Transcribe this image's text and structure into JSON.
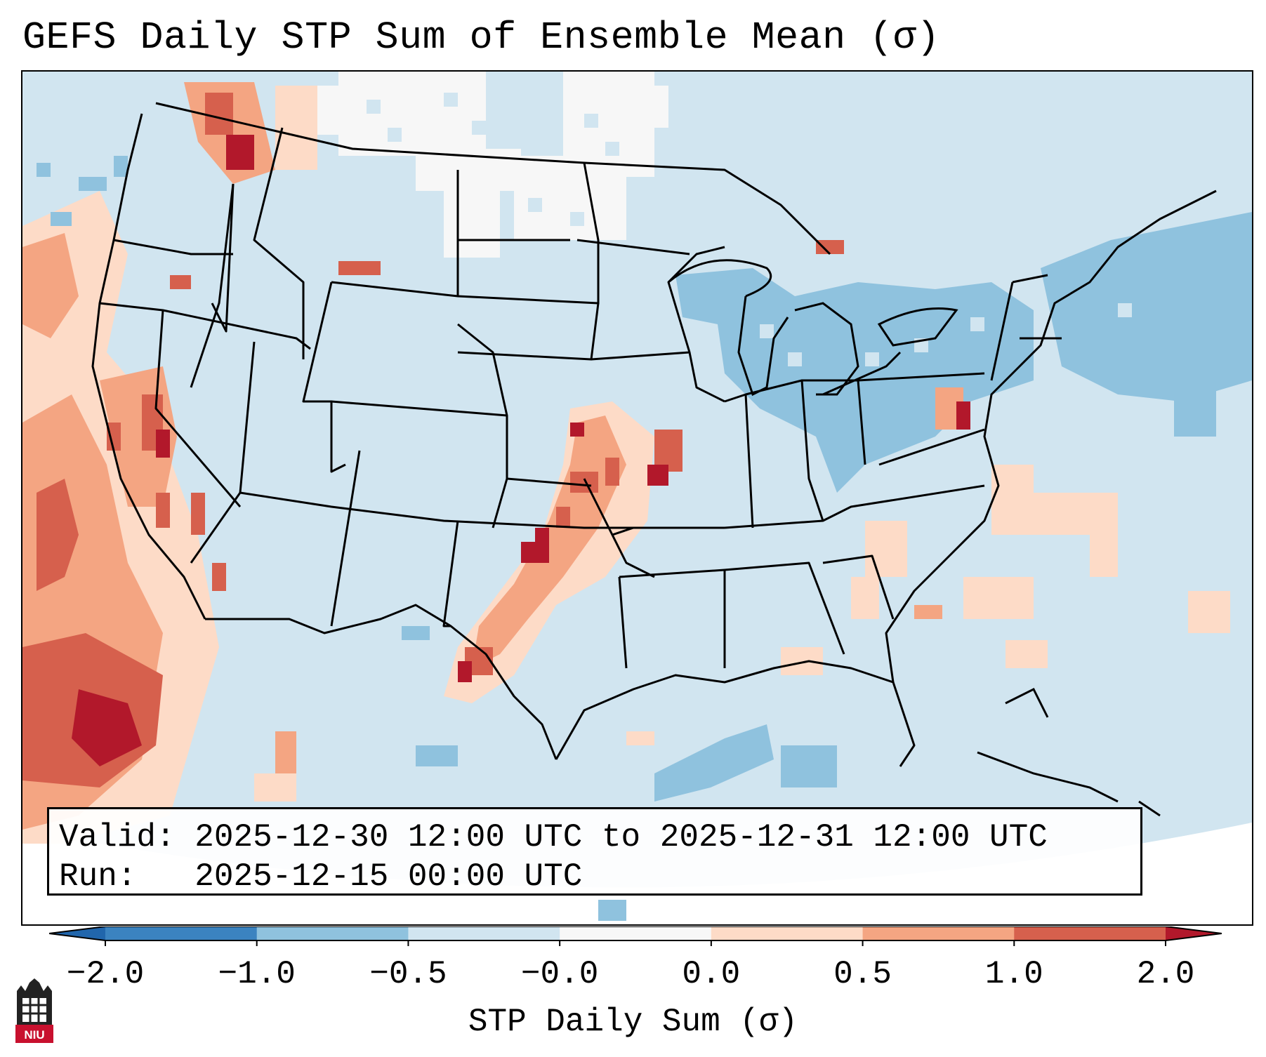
{
  "title": "GEFS Daily STP Sum of Ensemble Mean (σ)",
  "info": {
    "valid_prefix": "Valid:",
    "valid_value": "2025-12-30 12:00 UTC to 2025-12-31 12:00 UTC",
    "run_prefix": "Run:",
    "run_value": "2025-12-15 00:00 UTC"
  },
  "colorbar": {
    "label": "STP Daily Sum (σ)",
    "ticks": [
      "−2.0",
      "−1.0",
      "−0.5",
      "−0.0",
      "0.0",
      "0.5",
      "1.0",
      "2.0"
    ],
    "colors": [
      "#3b83c0",
      "#8fc2de",
      "#d1e5f0",
      "#f7f7f7",
      "#fddbc7",
      "#f4a582",
      "#d6604d"
    ],
    "extend_low": "#2166ac",
    "extend_high": "#b2182b"
  },
  "map": {
    "background": "#d1e5f0",
    "region": "Contiguous United States"
  },
  "logo": {
    "text": "NIU",
    "icon": "niu-castle-logo"
  }
}
